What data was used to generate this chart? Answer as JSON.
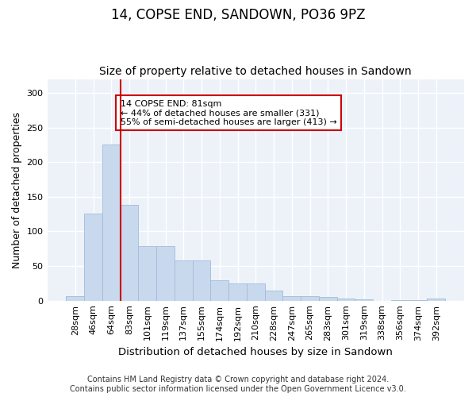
{
  "title": "14, COPSE END, SANDOWN, PO36 9PZ",
  "subtitle": "Size of property relative to detached houses in Sandown",
  "xlabel": "Distribution of detached houses by size in Sandown",
  "ylabel": "Number of detached properties",
  "categories": [
    "28sqm",
    "46sqm",
    "64sqm",
    "83sqm",
    "101sqm",
    "119sqm",
    "137sqm",
    "155sqm",
    "174sqm",
    "192sqm",
    "210sqm",
    "228sqm",
    "247sqm",
    "265sqm",
    "283sqm",
    "301sqm",
    "319sqm",
    "338sqm",
    "356sqm",
    "374sqm",
    "392sqm"
  ],
  "values": [
    7,
    126,
    226,
    138,
    79,
    79,
    58,
    58,
    30,
    25,
    25,
    15,
    7,
    7,
    5,
    3,
    2,
    0,
    1,
    1,
    3
  ],
  "bar_color": "#c9d9ed",
  "bar_edge_color": "#a0bbda",
  "vline_x_index": 3,
  "vline_color": "#cc0000",
  "annotation_text": "14 COPSE END: 81sqm\n← 44% of detached houses are smaller (331)\n55% of semi-detached houses are larger (413) →",
  "annotation_box_color": "#ffffff",
  "annotation_box_edge": "#cc0000",
  "bg_color": "#edf2f9",
  "grid_color": "#ffffff",
  "footer": "Contains HM Land Registry data © Crown copyright and database right 2024.\nContains public sector information licensed under the Open Government Licence v3.0.",
  "ylim": [
    0,
    320
  ],
  "yticks": [
    0,
    50,
    100,
    150,
    200,
    250,
    300
  ],
  "title_fontsize": 12,
  "subtitle_fontsize": 10,
  "xlabel_fontsize": 9.5,
  "ylabel_fontsize": 9,
  "tick_fontsize": 8,
  "footer_fontsize": 7,
  "fig_bg_color": "#ffffff"
}
